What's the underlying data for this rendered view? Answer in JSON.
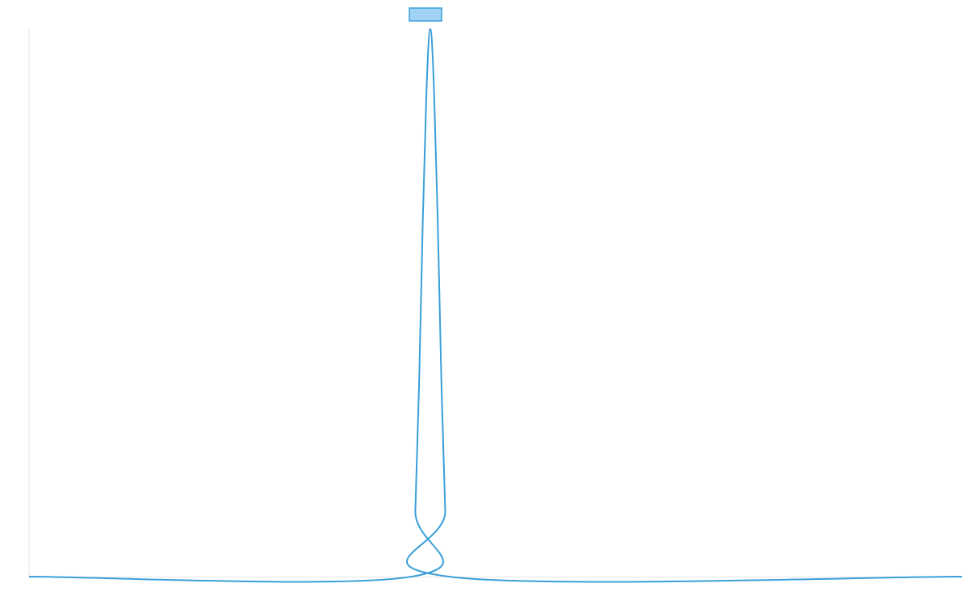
{
  "chart_data": {
    "type": "line",
    "title": "",
    "xlabel": "",
    "ylabel": "",
    "grid": false,
    "legend": {
      "placement": "top-center",
      "entries": [
        {
          "label": "",
          "swatch": "box"
        }
      ]
    },
    "colors": {
      "line": "#3a9fd8",
      "legend_fill": "#9fd2f4",
      "legend_stroke": "#3a9fd8",
      "axis": "#e6e6e6"
    },
    "xlim": [
      0,
      100
    ],
    "ylim": [
      0,
      1
    ],
    "series": [
      {
        "name": "",
        "x": [
          0,
          41.0,
          41.4,
          41.8,
          42.2,
          42.6,
          43.0,
          43.4,
          43.8,
          44.2,
          44.6,
          45.0,
          100
        ],
        "y": [
          0,
          0,
          0.12,
          0.35,
          0.65,
          0.89,
          1.0,
          0.89,
          0.65,
          0.35,
          0.12,
          0,
          0
        ]
      }
    ]
  }
}
